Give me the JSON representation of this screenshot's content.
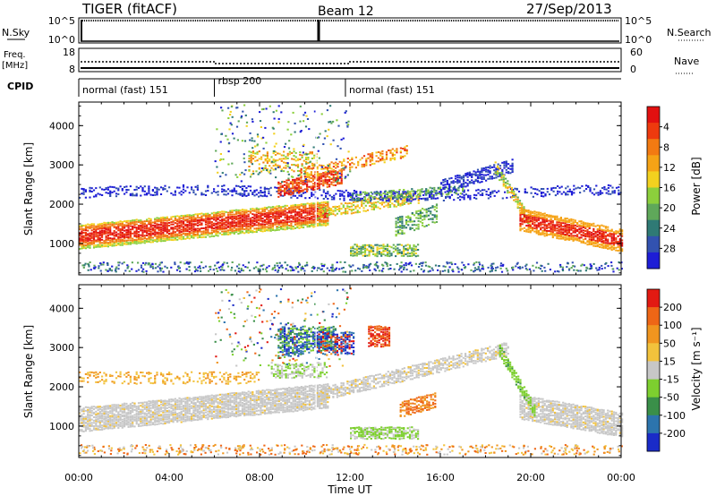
{
  "header": {
    "radar": "TIGER (fitACF)",
    "beam": "Beam 12",
    "date": "27/Sep/2013"
  },
  "top_strip": {
    "left_label": "N.Sky",
    "right_label": "N.Search",
    "left_ticks": [
      "10^5",
      "10^0"
    ],
    "right_ticks": [
      "10^5",
      "10^0"
    ]
  },
  "freq_strip": {
    "left_label": "Freq.",
    "left_unit": "[MHz]",
    "right_label": "Nave",
    "left_ticks": [
      "18",
      "8"
    ],
    "right_ticks": [
      "60",
      "0"
    ]
  },
  "cpid": {
    "label": "CPID",
    "segments": [
      {
        "name": "normal (fast) 151",
        "start_hour": 0,
        "end_hour": 6
      },
      {
        "name": "rbsp 200",
        "start_hour": 6,
        "end_hour": 11.8
      },
      {
        "name": "normal (fast) 151",
        "start_hour": 11.8,
        "end_hour": 24
      }
    ]
  },
  "chart_data": [
    {
      "type": "heatmap",
      "panel": "power",
      "ylabel": "Slant Range [km]",
      "yticks": [
        "1000",
        "2000",
        "3000",
        "4000"
      ],
      "ylim": [
        200,
        4600
      ],
      "colorbar_label": "Power [dB]",
      "colorbar_ticks": [
        "4",
        "8",
        "12",
        "16",
        "20",
        "24",
        "28"
      ],
      "colorscale": [
        "#1d1dd6",
        "#3252b0",
        "#2f7a75",
        "#5fa85a",
        "#8ccf3c",
        "#f2d11f",
        "#f5a316",
        "#f27a12",
        "#ee3a0e",
        "#e21010"
      ],
      "features": [
        {
          "name": "main band",
          "x_start": 0,
          "x_end": 10.5,
          "range_km": [
            1000,
            1700
          ]
        },
        {
          "name": "upper band",
          "x_start": 0,
          "x_end": 24,
          "range_km": [
            2100,
            2400
          ]
        },
        {
          "name": "arc",
          "x_start": 16,
          "x_end": 20,
          "range_km": [
            1200,
            3000
          ]
        },
        {
          "name": "afternoon band",
          "x_start": 19.5,
          "x_end": 24,
          "range_km": [
            900,
            1500
          ]
        }
      ]
    },
    {
      "type": "heatmap",
      "panel": "velocity",
      "ylabel": "Slant Range [km]",
      "yticks": [
        "1000",
        "2000",
        "3000",
        "4000"
      ],
      "ylim": [
        200,
        4600
      ],
      "colorbar_label": "Velocity [m s⁻¹]",
      "colorbar_ticks": [
        "200",
        "100",
        "50",
        "15",
        "-15",
        "-50",
        "-100",
        "-200"
      ],
      "colorscale": [
        "#1a2bc8",
        "#2c74ad",
        "#3a8f49",
        "#7dcf2f",
        "#c7c7c7",
        "#f2c23c",
        "#f0951f",
        "#ee6616",
        "#e21a12"
      ]
    }
  ],
  "x_axis": {
    "label": "Time UT",
    "ticks": [
      "00:00",
      "04:00",
      "08:00",
      "12:00",
      "16:00",
      "20:00",
      "00:00"
    ],
    "xlim": [
      0,
      24
    ]
  }
}
